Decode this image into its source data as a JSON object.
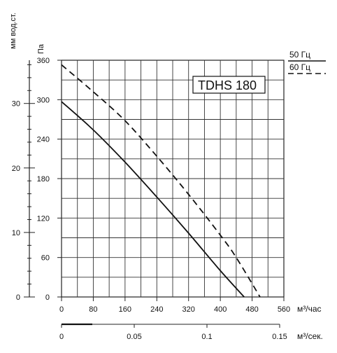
{
  "chart_data": {
    "type": "line",
    "title": "TDHS 180",
    "x_axis_primary": {
      "unit_label": "м³/час",
      "ticks": [
        0,
        80,
        160,
        240,
        320,
        400,
        480,
        560
      ],
      "range": [
        0,
        560
      ]
    },
    "x_axis_secondary": {
      "unit_label": "м³/сек.",
      "ticks": [
        "0",
        "0.05",
        "0.1",
        "0.15"
      ],
      "tick_values": [
        0,
        0.05,
        0.1,
        0.15
      ]
    },
    "y_axis_primary": {
      "label": "Па",
      "ticks": [
        0,
        60,
        120,
        180,
        240,
        300,
        360
      ],
      "range": [
        0,
        360
      ]
    },
    "y_axis_secondary": {
      "label": "мм вод.ст.",
      "ticks": [
        0,
        10,
        20,
        30
      ],
      "range": [
        0,
        36.7
      ]
    },
    "grid": true,
    "legend_position": "top-right",
    "series": [
      {
        "name": "50 Гц",
        "style": "solid",
        "x": [
          0,
          80,
          160,
          240,
          320,
          400,
          460
        ],
        "y": [
          297,
          254,
          205,
          152,
          97,
          40,
          0
        ]
      },
      {
        "name": "60 Гц",
        "style": "dashed",
        "x": [
          0,
          80,
          160,
          240,
          320,
          400,
          440,
          500
        ],
        "y": [
          353,
          312,
          268,
          214,
          156,
          94,
          60,
          0
        ]
      }
    ]
  }
}
